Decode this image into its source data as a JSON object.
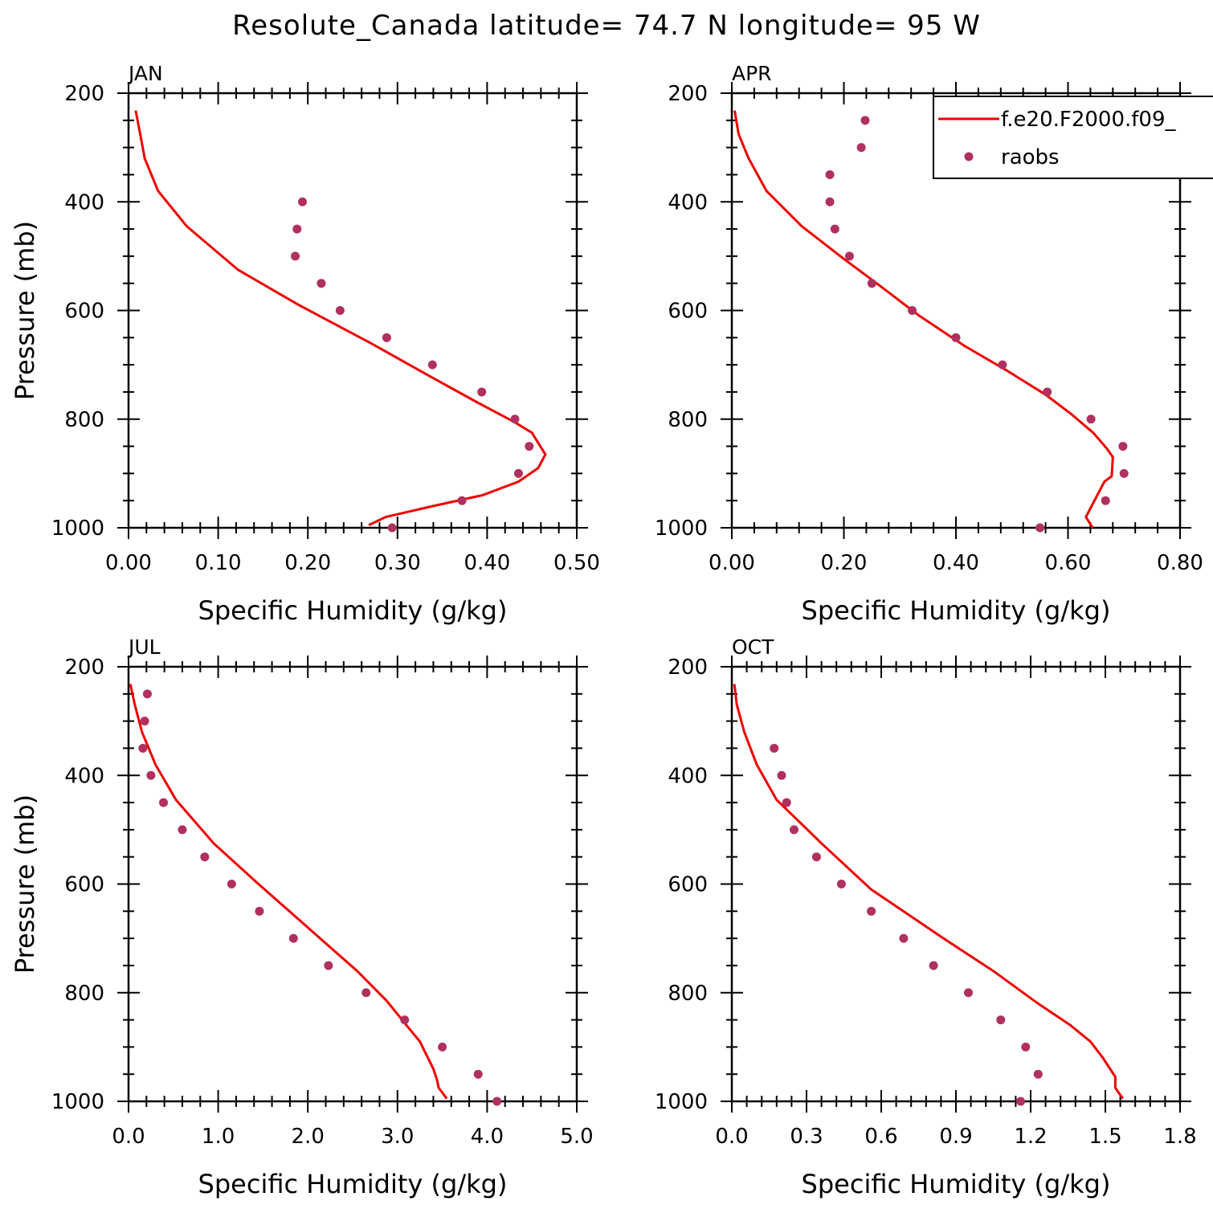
{
  "title": "Resolute_Canada  latitude= 74.7 N longitude= 95 W",
  "legend": {
    "position": "top-right",
    "model_label": "f.e20.F2000.f09_",
    "obs_label": "raobs"
  },
  "colors": {
    "model": "#ee0000",
    "obs": "#b03060"
  },
  "chart_data": [
    {
      "type": "line",
      "panel": "JAN",
      "xlabel": "Specific Humidity (g/kg)",
      "ylabel": "Pressure (mb)",
      "xlim": [
        0,
        0.5
      ],
      "ylim": [
        1000,
        200
      ],
      "xticks": [
        0,
        0.1,
        0.2,
        0.3,
        0.4,
        0.5
      ],
      "xtick_labels": [
        "0.00",
        "0.10",
        "0.20",
        "0.30",
        "0.40",
        "0.50"
      ],
      "yticks": [
        200,
        400,
        600,
        800,
        1000
      ],
      "ytick_labels": [
        "200",
        "400",
        "600",
        "800",
        "1000"
      ],
      "model": {
        "x": [
          0.008,
          0.013,
          0.018,
          0.033,
          0.065,
          0.122,
          0.19,
          0.27,
          0.335,
          0.39,
          0.43,
          0.45,
          0.465,
          0.457,
          0.435,
          0.395,
          0.34,
          0.287,
          0.268
        ],
        "y": [
          232,
          275,
          320,
          380,
          445,
          525,
          590,
          660,
          720,
          770,
          805,
          825,
          865,
          890,
          915,
          940,
          960,
          980,
          995
        ]
      },
      "obs": {
        "x": [
          0.194,
          0.188,
          0.186,
          0.215,
          0.236,
          0.288,
          0.339,
          0.394,
          0.431,
          0.447,
          0.435,
          0.372,
          0.294
        ],
        "y": [
          400,
          450,
          500,
          550,
          600,
          650,
          700,
          750,
          800,
          850,
          900,
          950,
          1000
        ]
      }
    },
    {
      "type": "line",
      "panel": "APR",
      "xlabel": "Specific Humidity (g/kg)",
      "ylabel": "",
      "xlim": [
        0,
        0.8
      ],
      "ylim": [
        1000,
        200
      ],
      "xticks": [
        0,
        0.2,
        0.4,
        0.6,
        0.8
      ],
      "xtick_labels": [
        "0.00",
        "0.20",
        "0.40",
        "0.60",
        "0.80"
      ],
      "yticks": [
        200,
        400,
        600,
        800,
        1000
      ],
      "ytick_labels": [
        "200",
        "400",
        "600",
        "800",
        "1000"
      ],
      "model": {
        "x": [
          0.005,
          0.012,
          0.03,
          0.062,
          0.125,
          0.2,
          0.265,
          0.335,
          0.415,
          0.49,
          0.56,
          0.605,
          0.645,
          0.67,
          0.68,
          0.678,
          0.665,
          0.632,
          0.644
        ],
        "y": [
          232,
          275,
          320,
          380,
          445,
          505,
          555,
          610,
          665,
          710,
          755,
          790,
          825,
          855,
          870,
          905,
          915,
          980,
          1000
        ]
      },
      "obs": {
        "x": [
          0.238,
          0.231,
          0.175,
          0.175,
          0.184,
          0.21,
          0.25,
          0.322,
          0.4,
          0.483,
          0.563,
          0.641,
          0.698,
          0.7,
          0.667,
          0.55
        ],
        "y": [
          250,
          300,
          350,
          400,
          450,
          500,
          550,
          600,
          650,
          700,
          750,
          800,
          850,
          900,
          950,
          1000
        ]
      }
    },
    {
      "type": "line",
      "panel": "JUL",
      "xlabel": "Specific Humidity (g/kg)",
      "ylabel": "Pressure (mb)",
      "xlim": [
        0,
        5
      ],
      "ylim": [
        1000,
        200
      ],
      "xticks": [
        0,
        1,
        2,
        3,
        4,
        5
      ],
      "xtick_labels": [
        "0.0",
        "1.0",
        "2.0",
        "3.0",
        "4.0",
        "5.0"
      ],
      "yticks": [
        200,
        400,
        600,
        800,
        1000
      ],
      "ytick_labels": [
        "200",
        "400",
        "600",
        "800",
        "1000"
      ],
      "model": {
        "x": [
          0.02,
          0.07,
          0.15,
          0.3,
          0.53,
          0.95,
          1.45,
          2.0,
          2.55,
          2.88,
          3.1,
          3.25,
          3.34,
          3.4,
          3.44,
          3.46,
          3.55
        ],
        "y": [
          232,
          270,
          320,
          380,
          445,
          525,
          600,
          680,
          760,
          815,
          860,
          890,
          920,
          940,
          960,
          975,
          995
        ]
      },
      "obs": {
        "x": [
          0.21,
          0.18,
          0.16,
          0.25,
          0.39,
          0.6,
          0.85,
          1.15,
          1.46,
          1.84,
          2.23,
          2.65,
          3.08,
          3.5,
          3.9,
          4.11
        ],
        "y": [
          250,
          300,
          350,
          400,
          450,
          500,
          550,
          600,
          650,
          700,
          750,
          800,
          850,
          900,
          950,
          1000
        ]
      }
    },
    {
      "type": "line",
      "panel": "OCT",
      "xlabel": "Specific Humidity (g/kg)",
      "ylabel": "",
      "xlim": [
        0,
        1.8
      ],
      "ylim": [
        1000,
        200
      ],
      "xticks": [
        0,
        0.3,
        0.6,
        0.9,
        1.2,
        1.5,
        1.8
      ],
      "xtick_labels": [
        "0.0",
        "0.3",
        "0.6",
        "0.9",
        "1.2",
        "1.5",
        "1.8"
      ],
      "yticks": [
        200,
        400,
        600,
        800,
        1000
      ],
      "ytick_labels": [
        "200",
        "400",
        "600",
        "800",
        "1000"
      ],
      "model": {
        "x": [
          0.01,
          0.02,
          0.05,
          0.1,
          0.18,
          0.27,
          0.36,
          0.56,
          0.85,
          1.05,
          1.23,
          1.36,
          1.44,
          1.49,
          1.54,
          1.54,
          1.57
        ],
        "y": [
          232,
          270,
          320,
          380,
          445,
          485,
          525,
          610,
          700,
          760,
          820,
          860,
          890,
          920,
          955,
          975,
          995
        ]
      },
      "obs": {
        "x": [
          0.17,
          0.2,
          0.22,
          0.25,
          0.34,
          0.44,
          0.56,
          0.69,
          0.81,
          0.95,
          1.08,
          1.18,
          1.23,
          1.16
        ],
        "y": [
          350,
          400,
          450,
          500,
          550,
          600,
          650,
          700,
          750,
          800,
          850,
          900,
          950,
          1000
        ]
      }
    }
  ]
}
